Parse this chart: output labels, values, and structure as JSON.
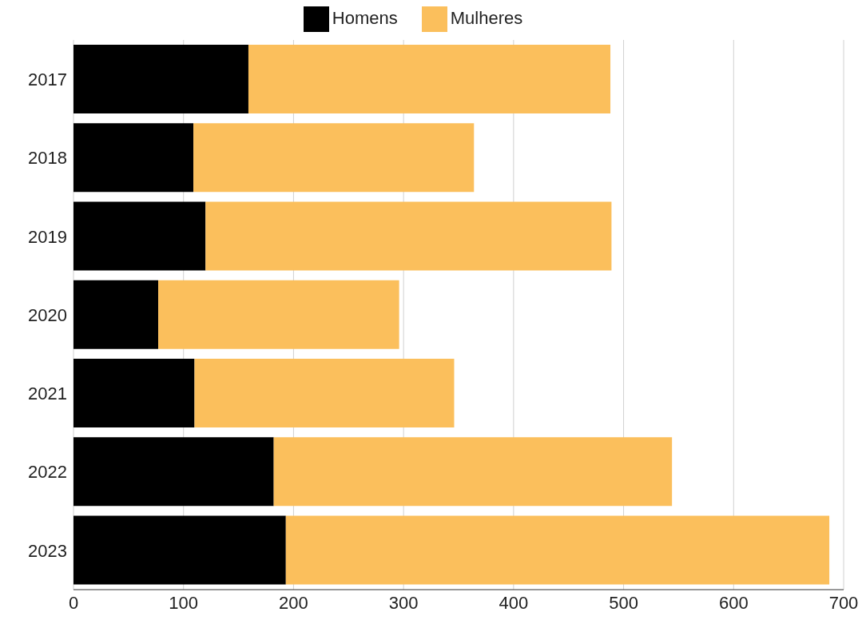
{
  "chart_data": {
    "type": "bar",
    "orientation": "horizontal",
    "stacked": true,
    "categories": [
      "2017",
      "2018",
      "2019",
      "2020",
      "2021",
      "2022",
      "2023"
    ],
    "series": [
      {
        "name": "Homens",
        "color": "#000000",
        "values": [
          159,
          109,
          120,
          77,
          110,
          182,
          193
        ]
      },
      {
        "name": "Mulheres",
        "color": "#fbbf5c",
        "values": [
          329,
          255,
          369,
          219,
          236,
          362,
          494
        ]
      }
    ],
    "xlim": [
      0,
      700
    ],
    "xticks": [
      0,
      100,
      200,
      300,
      400,
      500,
      600,
      700
    ],
    "grid": "x",
    "legend": "top"
  }
}
